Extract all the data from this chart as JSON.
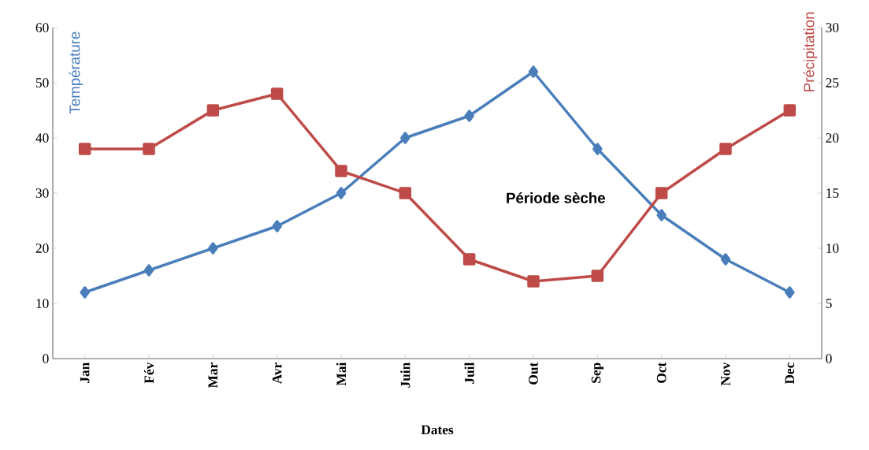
{
  "chart_data": {
    "type": "line",
    "categories": [
      "Jan",
      "Fév",
      "Mar",
      "Avr",
      "Mai",
      "Juin",
      "Juil",
      "Out",
      "Sep",
      "Oct",
      "Nov",
      "Dec"
    ],
    "series": [
      {
        "color": "#4a7ebb",
        "marker": "diamond",
        "values": [
          12,
          16,
          20,
          24,
          30,
          40,
          44,
          52,
          38,
          26,
          18,
          12
        ]
      },
      {
        "color": "#be4b48",
        "marker": "square",
        "axis": "y2",
        "values": [
          19,
          19,
          22.5,
          24,
          17,
          15,
          9,
          7,
          7.5,
          15,
          19,
          22.5
        ]
      }
    ],
    "xlabel": "Dates",
    "ylabel": "Température",
    "y2label": "Précipitation",
    "ylim": [
      0,
      60
    ],
    "yticks": [
      0,
      10,
      20,
      30,
      40,
      50,
      60
    ],
    "y2lim": [
      0,
      30
    ],
    "y2ticks": [
      0,
      5,
      10,
      15,
      20,
      25,
      30
    ],
    "annotations": [
      "Période sèche"
    ],
    "grid": false,
    "line_style": "solid"
  }
}
